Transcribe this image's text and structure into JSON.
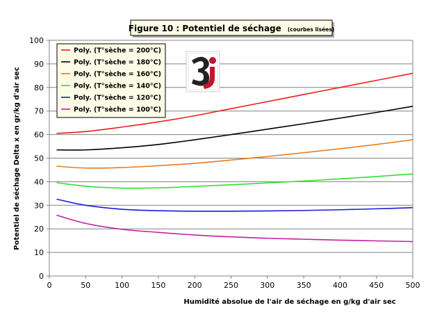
{
  "chart_data": {
    "type": "line",
    "title": "Figure 10 : Potentiel de séchage",
    "subtitle": "(courbes lisées)",
    "xlabel": "Humidité absolue de l'air de séchage en g/kg d'air sec",
    "ylabel": "Potentiel de séchage Delta x en gr/kg d'air sec",
    "xlim": [
      0,
      500
    ],
    "ylim": [
      0,
      100
    ],
    "xticks": [
      0,
      50,
      100,
      150,
      200,
      250,
      300,
      350,
      400,
      450,
      500
    ],
    "yticks": [
      0,
      10,
      20,
      30,
      40,
      50,
      60,
      70,
      80,
      90,
      100
    ],
    "grid": true,
    "legend_position": "top-left",
    "series": [
      {
        "name": "Poly. (T°sèche = 200°C)",
        "color": "#ee1c1c",
        "x": [
          10,
          50,
          100,
          150,
          200,
          250,
          300,
          350,
          400,
          450,
          500
        ],
        "y": [
          60.5,
          61.3,
          63.2,
          65.4,
          68.0,
          71.0,
          74.0,
          77.0,
          80.0,
          83.0,
          86.0
        ]
      },
      {
        "name": "Poly. (T°sèche = 180°C)",
        "color": "#000000",
        "x": [
          10,
          50,
          100,
          150,
          200,
          250,
          300,
          350,
          400,
          450,
          500
        ],
        "y": [
          53.5,
          53.5,
          54.4,
          55.8,
          57.8,
          60.0,
          62.3,
          64.6,
          67.0,
          69.4,
          72.0
        ]
      },
      {
        "name": "Poly. (T°sèche = 160°C)",
        "color": "#e87b1e",
        "x": [
          10,
          50,
          100,
          150,
          200,
          250,
          300,
          350,
          400,
          450,
          500
        ],
        "y": [
          46.6,
          45.8,
          46.0,
          46.8,
          47.8,
          49.2,
          50.7,
          52.3,
          54.0,
          55.8,
          57.8
        ]
      },
      {
        "name": "Poly. (T°sèche = 140°C)",
        "color": "#33e033",
        "x": [
          10,
          50,
          100,
          150,
          200,
          250,
          300,
          350,
          400,
          450,
          500
        ],
        "y": [
          39.6,
          38.1,
          37.3,
          37.4,
          38.0,
          38.7,
          39.5,
          40.3,
          41.2,
          42.2,
          43.3
        ]
      },
      {
        "name": "Poly. (T°sèche = 120°C)",
        "color": "#1a1ad4",
        "x": [
          10,
          50,
          100,
          150,
          200,
          250,
          300,
          350,
          400,
          450,
          500
        ],
        "y": [
          32.6,
          30.0,
          28.3,
          27.7,
          27.5,
          27.5,
          27.6,
          27.8,
          28.1,
          28.5,
          29.0
        ]
      },
      {
        "name": "Poly. (T°sèche = 100°C)",
        "color": "#c21fa3",
        "x": [
          10,
          50,
          100,
          150,
          200,
          250,
          300,
          350,
          400,
          450,
          500
        ],
        "y": [
          25.8,
          22.3,
          19.8,
          18.5,
          17.4,
          16.6,
          16.0,
          15.6,
          15.2,
          14.9,
          14.6
        ]
      }
    ]
  }
}
